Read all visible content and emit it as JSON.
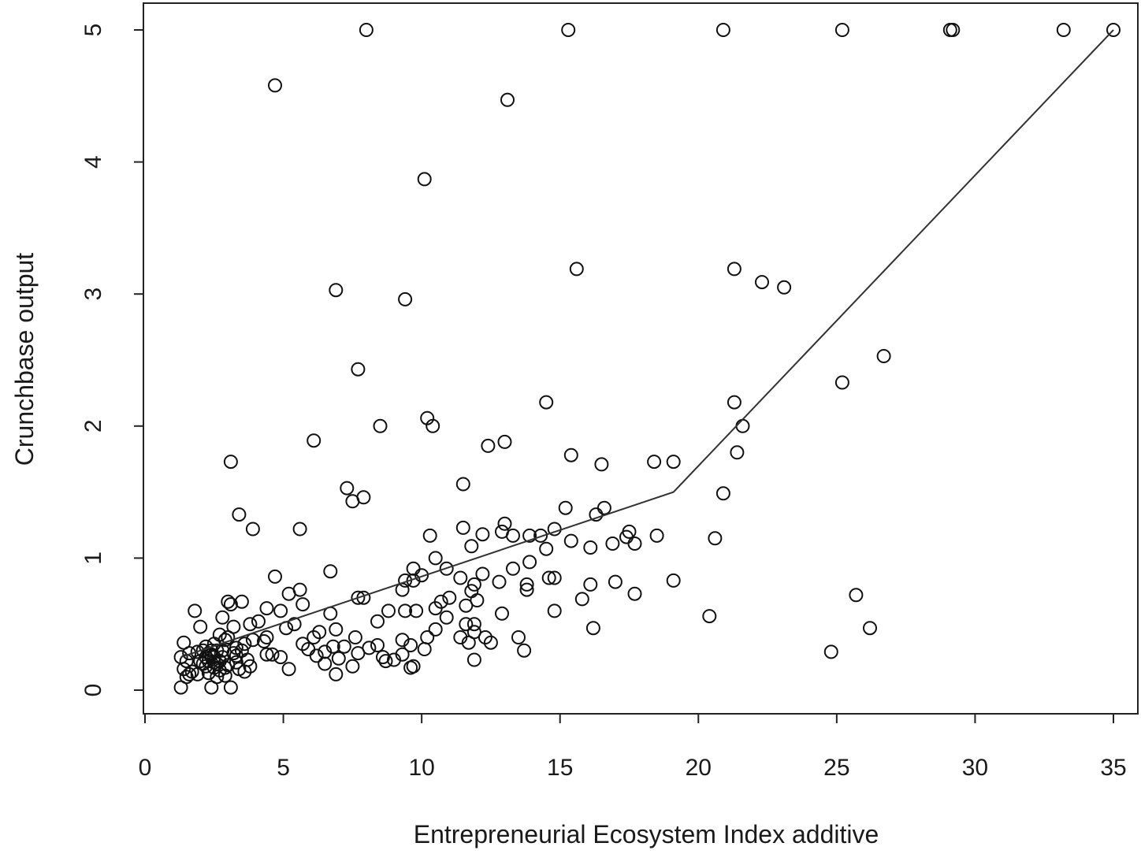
{
  "chart_data": {
    "type": "scatter",
    "title": "",
    "xlabel": "Entrepreneurial Ecosystem Index additive",
    "ylabel": "Crunchbase output",
    "xlim": [
      0,
      35
    ],
    "ylim": [
      0,
      5
    ],
    "x_ticks": [
      0,
      5,
      10,
      15,
      20,
      25,
      30,
      35
    ],
    "y_ticks": [
      0,
      1,
      2,
      3,
      4,
      5
    ],
    "grid": false,
    "legend": "none",
    "marker": "open-circle",
    "fit_line": {
      "type": "piecewise-linear",
      "points": [
        [
          1.3,
          0.25
        ],
        [
          19.1,
          1.5
        ],
        [
          35.0,
          5.0
        ]
      ]
    },
    "points": [
      [
        8.0,
        5.0
      ],
      [
        15.3,
        5.0
      ],
      [
        20.9,
        5.0
      ],
      [
        25.2,
        5.0
      ],
      [
        29.1,
        5.0
      ],
      [
        29.2,
        5.0
      ],
      [
        33.2,
        5.0
      ],
      [
        35.0,
        5.0
      ],
      [
        4.7,
        4.58
      ],
      [
        13.1,
        4.47
      ],
      [
        10.1,
        3.87
      ],
      [
        15.6,
        3.19
      ],
      [
        21.3,
        3.19
      ],
      [
        22.3,
        3.09
      ],
      [
        23.1,
        3.05
      ],
      [
        6.9,
        3.03
      ],
      [
        9.4,
        2.96
      ],
      [
        26.7,
        2.53
      ],
      [
        7.7,
        2.43
      ],
      [
        25.2,
        2.33
      ],
      [
        14.5,
        2.18
      ],
      [
        21.3,
        2.18
      ],
      [
        10.2,
        2.06
      ],
      [
        10.4,
        2.0
      ],
      [
        8.5,
        2.0
      ],
      [
        21.6,
        2.0
      ],
      [
        6.1,
        1.89
      ],
      [
        13.0,
        1.88
      ],
      [
        12.4,
        1.85
      ],
      [
        21.4,
        1.8
      ],
      [
        15.4,
        1.78
      ],
      [
        3.1,
        1.73
      ],
      [
        18.4,
        1.73
      ],
      [
        19.1,
        1.73
      ],
      [
        16.5,
        1.71
      ],
      [
        11.5,
        1.56
      ],
      [
        7.3,
        1.53
      ],
      [
        20.9,
        1.49
      ],
      [
        7.9,
        1.46
      ],
      [
        7.5,
        1.43
      ],
      [
        15.2,
        1.38
      ],
      [
        16.6,
        1.38
      ],
      [
        3.4,
        1.33
      ],
      [
        16.3,
        1.33
      ],
      [
        13.0,
        1.26
      ],
      [
        11.5,
        1.23
      ],
      [
        3.9,
        1.22
      ],
      [
        5.6,
        1.22
      ],
      [
        14.8,
        1.22
      ],
      [
        12.2,
        1.18
      ],
      [
        12.9,
        1.2
      ],
      [
        17.5,
        1.2
      ],
      [
        13.3,
        1.17
      ],
      [
        10.3,
        1.17
      ],
      [
        13.9,
        1.17
      ],
      [
        14.3,
        1.17
      ],
      [
        18.5,
        1.17
      ],
      [
        17.4,
        1.16
      ],
      [
        20.6,
        1.15
      ],
      [
        15.4,
        1.13
      ],
      [
        16.9,
        1.11
      ],
      [
        17.7,
        1.11
      ],
      [
        11.8,
        1.09
      ],
      [
        16.1,
        1.08
      ],
      [
        14.5,
        1.07
      ],
      [
        10.5,
        1.0
      ],
      [
        13.9,
        0.97
      ],
      [
        10.9,
        0.92
      ],
      [
        9.7,
        0.92
      ],
      [
        13.3,
        0.92
      ],
      [
        6.7,
        0.9
      ],
      [
        12.2,
        0.88
      ],
      [
        10.0,
        0.87
      ],
      [
        4.7,
        0.86
      ],
      [
        11.4,
        0.85
      ],
      [
        14.6,
        0.85
      ],
      [
        14.8,
        0.85
      ],
      [
        9.7,
        0.83
      ],
      [
        9.4,
        0.83
      ],
      [
        12.8,
        0.82
      ],
      [
        19.1,
        0.83
      ],
      [
        17.0,
        0.82
      ],
      [
        13.8,
        0.8
      ],
      [
        16.1,
        0.8
      ],
      [
        11.9,
        0.8
      ],
      [
        13.8,
        0.76
      ],
      [
        5.6,
        0.76
      ],
      [
        9.3,
        0.76
      ],
      [
        11.8,
        0.75
      ],
      [
        17.7,
        0.73
      ],
      [
        5.2,
        0.73
      ],
      [
        25.7,
        0.72
      ],
      [
        7.7,
        0.7
      ],
      [
        7.9,
        0.7
      ],
      [
        11.0,
        0.7
      ],
      [
        15.8,
        0.69
      ],
      [
        12.0,
        0.68
      ],
      [
        10.7,
        0.67
      ],
      [
        3.0,
        0.67
      ],
      [
        3.5,
        0.67
      ],
      [
        3.1,
        0.65
      ],
      [
        5.7,
        0.65
      ],
      [
        11.6,
        0.64
      ],
      [
        4.4,
        0.62
      ],
      [
        10.5,
        0.62
      ],
      [
        1.8,
        0.6
      ],
      [
        4.9,
        0.6
      ],
      [
        8.8,
        0.6
      ],
      [
        9.8,
        0.6
      ],
      [
        14.8,
        0.6
      ],
      [
        9.4,
        0.6
      ],
      [
        12.9,
        0.58
      ],
      [
        6.7,
        0.58
      ],
      [
        20.4,
        0.56
      ],
      [
        2.8,
        0.55
      ],
      [
        10.9,
        0.55
      ],
      [
        8.4,
        0.52
      ],
      [
        4.1,
        0.52
      ],
      [
        11.6,
        0.5
      ],
      [
        3.8,
        0.5
      ],
      [
        11.9,
        0.5
      ],
      [
        5.4,
        0.5
      ],
      [
        2.0,
        0.48
      ],
      [
        3.2,
        0.48
      ],
      [
        26.2,
        0.47
      ],
      [
        16.2,
        0.47
      ],
      [
        5.1,
        0.47
      ],
      [
        6.9,
        0.46
      ],
      [
        10.5,
        0.46
      ],
      [
        11.9,
        0.44
      ],
      [
        6.3,
        0.44
      ],
      [
        2.7,
        0.42
      ],
      [
        4.4,
        0.4
      ],
      [
        7.6,
        0.4
      ],
      [
        11.4,
        0.4
      ],
      [
        10.2,
        0.4
      ],
      [
        13.5,
        0.4
      ],
      [
        3.0,
        0.4
      ],
      [
        6.1,
        0.4
      ],
      [
        12.3,
        0.4
      ],
      [
        3.9,
        0.38
      ],
      [
        9.3,
        0.38
      ],
      [
        4.3,
        0.37
      ],
      [
        1.4,
        0.36
      ],
      [
        11.7,
        0.36
      ],
      [
        12.5,
        0.36
      ],
      [
        5.7,
        0.35
      ],
      [
        3.6,
        0.35
      ],
      [
        8.4,
        0.34
      ],
      [
        9.6,
        0.34
      ],
      [
        2.2,
        0.33
      ],
      [
        3.3,
        0.32
      ],
      [
        6.8,
        0.33
      ],
      [
        7.2,
        0.33
      ],
      [
        8.1,
        0.32
      ],
      [
        10.1,
        0.31
      ],
      [
        5.9,
        0.31
      ],
      [
        2.6,
        0.3
      ],
      [
        3.5,
        0.3
      ],
      [
        1.9,
        0.29
      ],
      [
        6.5,
        0.29
      ],
      [
        7.7,
        0.28
      ],
      [
        13.7,
        0.3
      ],
      [
        24.8,
        0.29
      ],
      [
        1.6,
        0.28
      ],
      [
        4.4,
        0.27
      ],
      [
        4.6,
        0.27
      ],
      [
        9.3,
        0.27
      ],
      [
        2.4,
        0.27
      ],
      [
        3.3,
        0.26
      ],
      [
        6.2,
        0.26
      ],
      [
        8.6,
        0.25
      ],
      [
        1.3,
        0.25
      ],
      [
        2.8,
        0.25
      ],
      [
        4.9,
        0.25
      ],
      [
        7.0,
        0.24
      ],
      [
        3.7,
        0.23
      ],
      [
        11.9,
        0.23
      ],
      [
        2.3,
        0.22
      ],
      [
        9.0,
        0.23
      ],
      [
        1.5,
        0.22
      ],
      [
        2.5,
        0.21
      ],
      [
        3.3,
        0.21
      ],
      [
        2.1,
        0.2
      ],
      [
        6.5,
        0.2
      ],
      [
        8.7,
        0.22
      ],
      [
        3.0,
        0.19
      ],
      [
        3.8,
        0.18
      ],
      [
        2.2,
        0.18
      ],
      [
        9.7,
        0.18
      ],
      [
        2.5,
        0.17
      ],
      [
        7.5,
        0.18
      ],
      [
        2.9,
        0.17
      ],
      [
        9.6,
        0.17
      ],
      [
        1.4,
        0.16
      ],
      [
        3.4,
        0.16
      ],
      [
        5.2,
        0.16
      ],
      [
        2.7,
        0.15
      ],
      [
        1.7,
        0.14
      ],
      [
        3.6,
        0.14
      ],
      [
        2.3,
        0.13
      ],
      [
        1.9,
        0.12
      ],
      [
        6.9,
        0.12
      ],
      [
        1.6,
        0.12
      ],
      [
        2.9,
        0.11
      ],
      [
        1.5,
        0.1
      ],
      [
        2.6,
        0.1
      ],
      [
        1.3,
        0.02
      ],
      [
        2.4,
        0.02
      ],
      [
        3.1,
        0.02
      ],
      [
        2.4,
        0.3
      ],
      [
        2.5,
        0.25
      ],
      [
        2.6,
        0.2
      ],
      [
        2.3,
        0.28
      ],
      [
        2.7,
        0.22
      ],
      [
        2.2,
        0.25
      ],
      [
        2.8,
        0.3
      ],
      [
        2.5,
        0.35
      ],
      [
        2.1,
        0.3
      ],
      [
        3.2,
        0.28
      ],
      [
        2.0,
        0.22
      ],
      [
        2.9,
        0.38
      ]
    ]
  }
}
